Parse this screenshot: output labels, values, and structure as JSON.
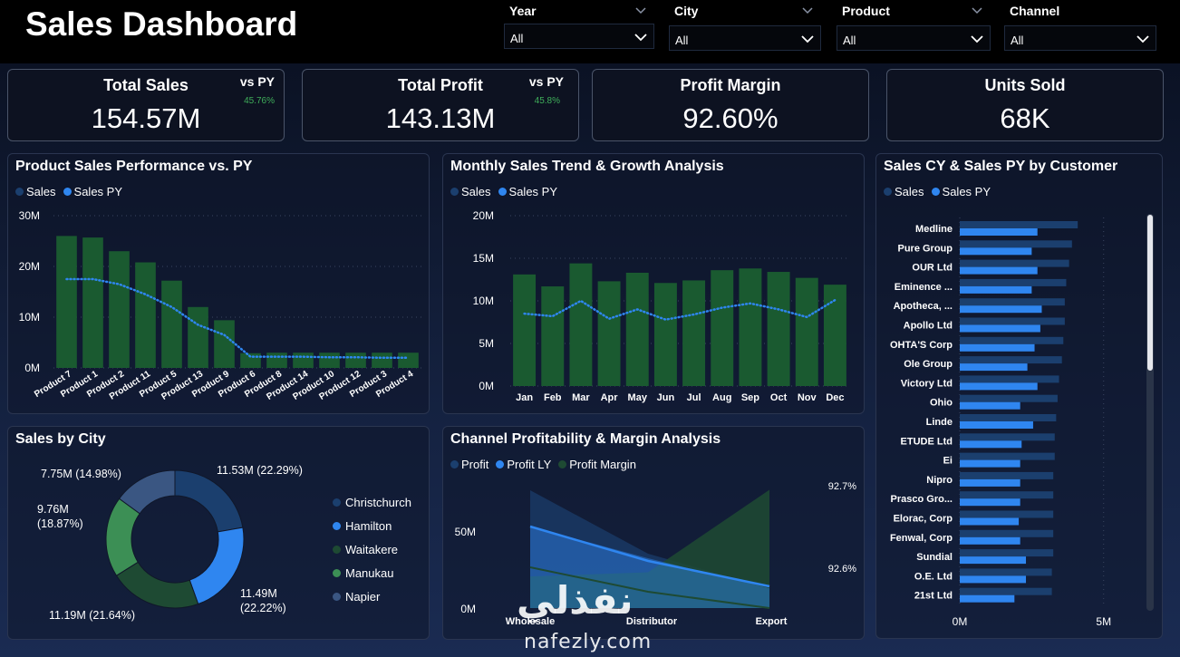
{
  "header": {
    "title": "Sales Dashboard"
  },
  "slicers": [
    {
      "label": "Year",
      "value": "All"
    },
    {
      "label": "City",
      "value": "All"
    },
    {
      "label": "Product",
      "value": "All"
    },
    {
      "label": "Channel",
      "value": "All"
    }
  ],
  "kpis": {
    "total_sales": {
      "title": "Total Sales",
      "value": "154.57M",
      "vs_label": "vs PY",
      "vs_value": "45.76%"
    },
    "total_profit": {
      "title": "Total Profit",
      "value": "143.13M",
      "vs_label": "vs PY",
      "vs_value": "45.8%"
    },
    "profit_margin": {
      "title": "Profit Margin",
      "value": "92.60%"
    },
    "units_sold": {
      "title": "Units Sold",
      "value": "68K"
    }
  },
  "colors": {
    "sales": "#1b3f6e",
    "sales_py": "#2f86f0",
    "bar_green": "#1a5a30",
    "accent_green": "#3fae5a"
  },
  "panels": {
    "product": {
      "title": "Product Sales Performance vs. PY",
      "legend": [
        "Sales",
        "Sales PY"
      ]
    },
    "monthly": {
      "title": "Monthly Sales Trend & Growth Analysis",
      "legend": [
        "Sales",
        "Sales PY"
      ]
    },
    "customer": {
      "title": "Sales CY & Sales PY by Customer",
      "legend": [
        "Sales",
        "Sales PY"
      ]
    },
    "city": {
      "title": "Sales by City"
    },
    "channel": {
      "title": "Channel Profitability & Margin Analysis",
      "legend": [
        "Profit",
        "Profit LY",
        "Profit Margin"
      ]
    }
  },
  "watermark": {
    "arabic": "نفذلي",
    "latin": "nafezly.com"
  },
  "chart_data": [
    {
      "id": "product",
      "type": "bar",
      "categories": [
        "Product 7",
        "Product 1",
        "Product 2",
        "Product 11",
        "Product 5",
        "Product 13",
        "Product 9",
        "Product 6",
        "Product 8",
        "Product 14",
        "Product 10",
        "Product 12",
        "Product 3",
        "Product 4"
      ],
      "series": [
        {
          "name": "Sales",
          "values": [
            26,
            25.7,
            23,
            20.8,
            17.2,
            12,
            9.4,
            2.9,
            3,
            3,
            3,
            3,
            3,
            3
          ]
        },
        {
          "name": "Sales PY",
          "values": [
            17.5,
            17.5,
            16.5,
            14.5,
            12,
            8.5,
            6.5,
            2.2,
            2.2,
            2.2,
            2.1,
            2.1,
            2,
            2
          ]
        }
      ],
      "yticks": [
        "0M",
        "10M",
        "20M",
        "30M"
      ],
      "ylim": [
        0,
        30
      ]
    },
    {
      "id": "monthly",
      "type": "bar",
      "categories": [
        "Jan",
        "Feb",
        "Mar",
        "Apr",
        "May",
        "Jun",
        "Jul",
        "Aug",
        "Sep",
        "Oct",
        "Nov",
        "Dec"
      ],
      "series": [
        {
          "name": "Sales",
          "values": [
            13.1,
            11.7,
            14.4,
            12.3,
            13.3,
            12.1,
            12.4,
            13.6,
            13.8,
            13.4,
            12.7,
            11.9
          ]
        },
        {
          "name": "Sales PY",
          "values": [
            8.5,
            8.2,
            10,
            7.9,
            9,
            7.8,
            8.4,
            9.2,
            9.7,
            9,
            8.1,
            10.1
          ]
        }
      ],
      "yticks": [
        "0M",
        "5M",
        "10M",
        "15M",
        "20M"
      ],
      "ylim": [
        0,
        20
      ]
    },
    {
      "id": "customer",
      "type": "bar",
      "categories": [
        "Medline",
        "Pure Group",
        "OUR Ltd",
        "Eminence ...",
        "Apotheca, ...",
        "Apollo Ltd",
        "OHTA'S Corp",
        "Ole Group",
        "Victory Ltd",
        "Ohio",
        "Linde",
        "ETUDE Ltd",
        "Ei",
        "Nipro",
        "Prasco Gro...",
        "Elorac, Corp",
        "Fenwal, Corp",
        "Sundial",
        "O.E. Ltd",
        "21st Ltd"
      ],
      "series": [
        {
          "name": "Sales",
          "values": [
            4.1,
            3.9,
            3.8,
            3.7,
            3.65,
            3.65,
            3.6,
            3.55,
            3.45,
            3.4,
            3.35,
            3.3,
            3.3,
            3.25,
            3.25,
            3.25,
            3.25,
            3.25,
            3.2,
            3.2
          ]
        },
        {
          "name": "Sales PY",
          "values": [
            2.7,
            2.5,
            2.7,
            2.5,
            2.85,
            2.8,
            2.6,
            2.35,
            2.7,
            2.1,
            2.55,
            2.15,
            2.1,
            2.1,
            2.1,
            2.05,
            2.1,
            2.3,
            2.3,
            1.9
          ]
        }
      ],
      "xticks": [
        "0M",
        "5M"
      ],
      "xlim": [
        0,
        6.3
      ]
    },
    {
      "id": "city",
      "type": "pie",
      "labels": [
        "Christchurch",
        "Hamilton",
        "Waitakere",
        "Manukau",
        "Napier"
      ],
      "values": [
        11.53,
        11.49,
        11.19,
        9.76,
        7.75
      ],
      "data_labels": [
        "11.53M (22.29%)",
        "11.49M (22.22%)",
        "11.19M (21.64%)",
        "9.76M (18.87%)",
        "7.75M (14.98%)"
      ],
      "colors": [
        "#1b3f6e",
        "#2f86f0",
        "#1e4a33",
        "#3c8f55",
        "#3a5682"
      ]
    },
    {
      "id": "channel",
      "type": "area",
      "categories": [
        "Wholesale",
        "Distributor",
        "Export"
      ],
      "series": [
        {
          "name": "Profit",
          "values": [
            82,
            55,
            28
          ]
        },
        {
          "name": "Profit LY",
          "values": [
            58,
            37,
            18
          ]
        },
        {
          "name": "Profit Margin",
          "values": [
            92.59,
            92.595,
            92.695
          ]
        }
      ],
      "yticks": [
        "0M",
        "50M"
      ],
      "y2ticks": [
        "92.6%",
        "92.7%"
      ]
    }
  ]
}
